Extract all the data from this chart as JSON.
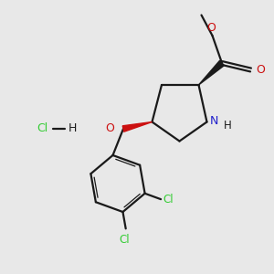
{
  "background_color": "#e8e8e8",
  "bond_color": "#1a1a1a",
  "N_color": "#2020cc",
  "O_color": "#cc1010",
  "Cl_color": "#33cc33",
  "figsize": [
    3.0,
    3.0
  ],
  "dpi": 100,
  "xlim": [
    0,
    10
  ],
  "ylim": [
    0,
    10
  ]
}
